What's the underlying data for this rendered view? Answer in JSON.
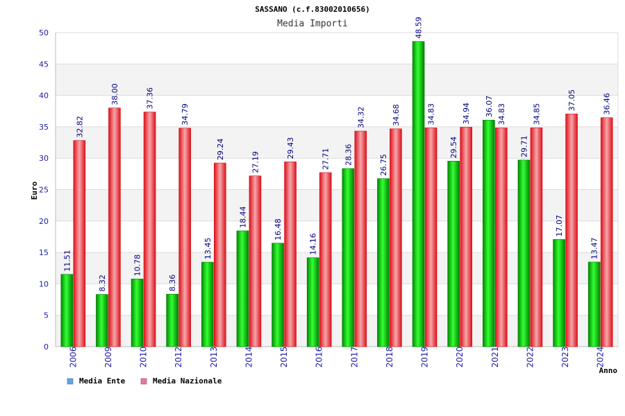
{
  "chart_data": {
    "type": "bar",
    "title": "SASSANO (c.f.83002010656)",
    "subtitle": "Media Importi",
    "xlabel": "Anno",
    "ylabel": "Euro",
    "ylim": [
      0,
      50
    ],
    "yticks": [
      0,
      5,
      10,
      15,
      20,
      25,
      30,
      35,
      40,
      45,
      50
    ],
    "grid": true,
    "legend_position": "bottom-left",
    "categories": [
      "2006",
      "2009",
      "2010",
      "2012",
      "2013",
      "2014",
      "2015",
      "2016",
      "2017",
      "2018",
      "2019",
      "2020",
      "2021",
      "2022",
      "2023",
      "2024"
    ],
    "series": [
      {
        "name": "Media Ente",
        "color": "#00aa00",
        "values": [
          11.51,
          8.32,
          10.78,
          8.36,
          13.45,
          18.44,
          16.48,
          14.16,
          28.36,
          26.75,
          48.59,
          29.54,
          36.07,
          29.71,
          17.07,
          13.47
        ],
        "labels": [
          "11.51",
          "8.32",
          "10.78",
          "8.36",
          "13.45",
          "18.44",
          "16.48",
          "14.16",
          "28.36",
          "26.75",
          "48.59",
          "29.54",
          "36.07",
          "29.71",
          "17.07",
          "13.47"
        ]
      },
      {
        "name": "Media Nazionale",
        "color": "#e8202a",
        "values": [
          32.82,
          38.0,
          37.36,
          34.79,
          29.24,
          27.19,
          29.43,
          27.71,
          34.32,
          34.68,
          34.83,
          34.94,
          34.83,
          34.85,
          37.05,
          36.46
        ],
        "labels": [
          "32.82",
          "38.00",
          "37.36",
          "34.79",
          "29.24",
          "27.19",
          "29.43",
          "27.71",
          "34.32",
          "34.68",
          "34.83",
          "34.94",
          "34.83",
          "34.85",
          "37.05",
          "36.46"
        ]
      }
    ],
    "legend": [
      {
        "label": "Media Ente",
        "color": "#66a3e0"
      },
      {
        "label": "Media Nazionale",
        "color": "#e07aa8"
      }
    ]
  }
}
